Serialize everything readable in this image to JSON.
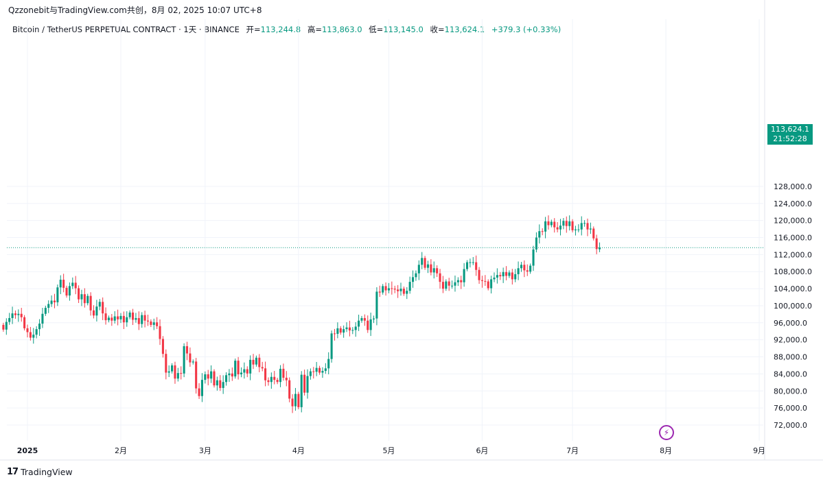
{
  "header": {
    "text": "Qzzonebit与TradingView.com共创，8月 02, 2025 10:07 UTC+8"
  },
  "legend": {
    "symbol": "Bitcoin / TetherUS PERPETUAL CONTRACT · 1天 · BINANCE",
    "open_label": "开=",
    "open": "113,244.8",
    "high_label": "高=",
    "high": "113,863.0",
    "low_label": "低=",
    "low": "113,145.0",
    "close_label": "收=",
    "close": "113,624.1",
    "change": "+379.3 (+0.33%)"
  },
  "price_badge": {
    "price": "113,624.1",
    "countdown": "21:52:28"
  },
  "logo": {
    "mark": "17",
    "text": "TradingView"
  },
  "colors": {
    "up": "#089981",
    "down": "#f23645",
    "grid": "#f0f3fa",
    "last_price_line": "#089981"
  },
  "chart_data": {
    "type": "candlestick",
    "y_axis_ticks": [
      "128,000.0",
      "124,000.0",
      "120,000.0",
      "116,000.0",
      "112,000.0",
      "108,000.0",
      "104,000.0",
      "100,000.0",
      "96,000.0",
      "92,000.0",
      "88,000.0",
      "84,000.0",
      "80,000.0",
      "76,000.0",
      "72,000.0"
    ],
    "ylim": [
      68300,
      130000
    ],
    "x_axis_ticks": [
      {
        "label": "2025",
        "date": "2025-01-01"
      },
      {
        "label": "2月",
        "date": "2025-02-01"
      },
      {
        "label": "3月",
        "date": "2025-03-01"
      },
      {
        "label": "4月",
        "date": "2025-04-01"
      },
      {
        "label": "5月",
        "date": "2025-05-01"
      },
      {
        "label": "6月",
        "date": "2025-06-01"
      },
      {
        "label": "7月",
        "date": "2025-07-01"
      },
      {
        "label": "8月",
        "date": "2025-08-01"
      },
      {
        "label": "9月",
        "date": "2025-09-01"
      }
    ],
    "start_date": "2024-12-24",
    "last_price": 113624.1,
    "close": [
      94400,
      96200,
      97100,
      98200,
      97800,
      98100,
      97300,
      94700,
      93800,
      92500,
      93200,
      94500,
      95800,
      98100,
      99500,
      100400,
      101200,
      100800,
      104300,
      106100,
      104200,
      102400,
      104600,
      105400,
      104100,
      101500,
      102700,
      100600,
      102300,
      98900,
      97700,
      99800,
      100900,
      98200,
      96600,
      97200,
      96500,
      97500,
      96800,
      97600,
      96100,
      97300,
      98400,
      96700,
      97100,
      95700,
      97800,
      96500,
      96300,
      95500,
      96100,
      95200,
      92200,
      88700,
      84300,
      84600,
      86000,
      82900,
      84200,
      84100,
      90500,
      88800,
      86700,
      86900,
      80600,
      78800,
      82600,
      83900,
      82900,
      84600,
      81300,
      82500,
      80700,
      82100,
      83700,
      84100,
      83400,
      87100,
      83900,
      84300,
      85100,
      84100,
      87300,
      86200,
      87800,
      85600,
      85300,
      82500,
      82100,
      83300,
      82600,
      82100,
      85200,
      83100,
      82500,
      78200,
      76400,
      79300,
      76200,
      83800,
      79600,
      83500,
      84600,
      84500,
      85400,
      84300,
      84700,
      85300,
      87500,
      93500,
      93400,
      94700,
      93700,
      94500,
      94900,
      94200,
      94300,
      95100,
      96500,
      97100,
      96500,
      94300,
      96800,
      97000,
      103300,
      103100,
      104600,
      103600,
      104100,
      104000,
      103800,
      103400,
      104000,
      102800,
      103500,
      105600,
      106700,
      107600,
      109600,
      111200,
      108900,
      109700,
      107800,
      108800,
      107600,
      105600,
      104000,
      105700,
      104700,
      104700,
      105500,
      106000,
      105500,
      108600,
      110200,
      110200,
      110200,
      108400,
      106000,
      105800,
      105700,
      104100,
      106200,
      106600,
      107200,
      106900,
      107900,
      107000,
      107800,
      106200,
      107400,
      108800,
      109600,
      108300,
      108000,
      109400,
      113200,
      116000,
      117500,
      117400,
      119800,
      118900,
      119700,
      118400,
      117900,
      118800,
      119900,
      118700,
      119800,
      117700,
      117900,
      117900,
      119400,
      119400,
      117900,
      118100,
      115800,
      113300,
      113624.1
    ],
    "open": [
      95500,
      94400,
      96200,
      97100,
      98200,
      97800,
      98100,
      97300,
      94700,
      93800,
      92500,
      93200,
      94500,
      95800,
      98100,
      99500,
      100400,
      101200,
      100800,
      104300,
      106100,
      104200,
      102400,
      104600,
      105400,
      104100,
      101500,
      102700,
      100600,
      102300,
      98900,
      97700,
      99800,
      100900,
      98200,
      96600,
      97200,
      96500,
      97500,
      96800,
      97600,
      96100,
      97300,
      98400,
      96700,
      97100,
      95700,
      97800,
      96500,
      96300,
      95500,
      96100,
      95200,
      92200,
      88700,
      84300,
      84600,
      86000,
      82900,
      84200,
      84100,
      90500,
      88800,
      86700,
      86900,
      80600,
      78800,
      82600,
      83900,
      82900,
      84600,
      81300,
      82500,
      80700,
      82100,
      83700,
      84100,
      83400,
      87100,
      83900,
      84300,
      85100,
      84100,
      87300,
      86200,
      87800,
      85600,
      85300,
      82500,
      82100,
      83300,
      82600,
      82100,
      85200,
      83100,
      82500,
      78200,
      76400,
      79300,
      76200,
      83800,
      79600,
      83500,
      84600,
      84500,
      85400,
      84300,
      84700,
      85300,
      87500,
      93500,
      93400,
      94700,
      93700,
      94500,
      94900,
      94200,
      94300,
      95100,
      96500,
      97100,
      96500,
      94300,
      96800,
      97000,
      103300,
      103100,
      104600,
      103600,
      104100,
      104000,
      103800,
      103400,
      104000,
      102800,
      103500,
      105600,
      106700,
      107600,
      109600,
      111200,
      108900,
      109700,
      107800,
      108800,
      107600,
      105600,
      104000,
      105700,
      104700,
      104700,
      105500,
      106000,
      105500,
      108600,
      110200,
      110200,
      110200,
      108400,
      106000,
      105800,
      105700,
      104100,
      106200,
      106600,
      107200,
      106900,
      107900,
      107000,
      107800,
      106200,
      107400,
      108800,
      109600,
      108300,
      108000,
      109400,
      113200,
      116000,
      117500,
      117400,
      119800,
      118900,
      119700,
      118400,
      117900,
      118800,
      119900,
      118700,
      119800,
      117700,
      117900,
      117900,
      119400,
      119400,
      117900,
      118100,
      115800,
      113244.8
    ]
  }
}
